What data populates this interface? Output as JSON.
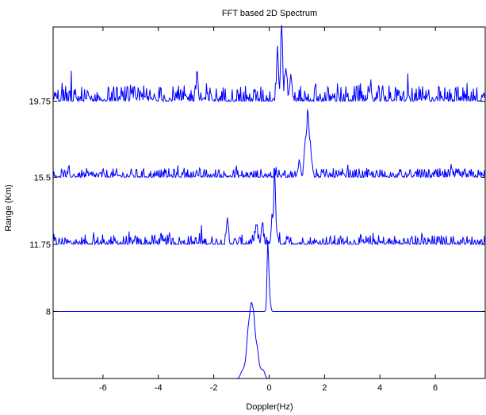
{
  "chart_data": {
    "type": "line",
    "title": "FFT based 2D Spectrum",
    "xlabel": "Doppler(Hz)",
    "ylabel": "Range (Km)",
    "xlim": [
      -7.8,
      7.8
    ],
    "ylim": [
      4.25,
      23.9
    ],
    "x_ticks": [
      -6,
      -4,
      -2,
      0,
      2,
      4,
      6
    ],
    "x_tick_labels": [
      "-6",
      "-4",
      "-2",
      "0",
      "2",
      "4",
      "6"
    ],
    "y_ticks": [
      8,
      11.75,
      15.5,
      19.75
    ],
    "y_tick_labels": [
      "8",
      "11.75",
      "15.5",
      "19.75"
    ],
    "grid": false,
    "legend": "none",
    "line_color": "#0000ff",
    "series": [
      {
        "baseline": 4.25,
        "peak_x": -0.65,
        "peak_height": 3.6,
        "noise": 0.0,
        "peak_width": 0.08,
        "extra_peaks": [
          [
            -0.55,
            2.6
          ],
          [
            -0.75,
            1.7
          ],
          [
            -0.45,
            1.2
          ],
          [
            -0.8,
            0.9
          ],
          [
            -0.4,
            0.6
          ],
          [
            -0.9,
            0.5
          ],
          [
            -0.3,
            0.4
          ],
          [
            -1.0,
            0.3
          ],
          [
            -0.2,
            0.4
          ]
        ]
      },
      {
        "baseline": 8,
        "peak_x": -0.05,
        "peak_height": 3.8,
        "noise": 0.0,
        "peak_width": 0.04,
        "extra_peaks": [
          [
            0.0,
            1.0
          ],
          [
            0.05,
            0.3
          ]
        ]
      },
      {
        "baseline": 11.75,
        "peak_x": 0.2,
        "peak_height": 3.8,
        "noise": 0.55,
        "peak_width": 0.05,
        "extra_peaks": [
          [
            0.1,
            1.2
          ],
          [
            -0.25,
            1.1
          ],
          [
            -1.5,
            1.3
          ],
          [
            -0.45,
            0.9
          ]
        ]
      },
      {
        "baseline": 15.5,
        "peak_x": 1.4,
        "peak_height": 3.5,
        "noise": 0.5,
        "peak_width": 0.06,
        "extra_peaks": [
          [
            1.3,
            1.8
          ],
          [
            1.5,
            1.4
          ],
          [
            1.1,
            0.8
          ]
        ]
      },
      {
        "baseline": 19.75,
        "peak_x": 0.45,
        "peak_height": 4.3,
        "noise": 0.9,
        "peak_width": 0.05,
        "extra_peaks": [
          [
            0.3,
            3.1
          ],
          [
            0.6,
            1.8
          ],
          [
            -2.6,
            1.6
          ],
          [
            0.8,
            1.2
          ]
        ]
      }
    ]
  }
}
